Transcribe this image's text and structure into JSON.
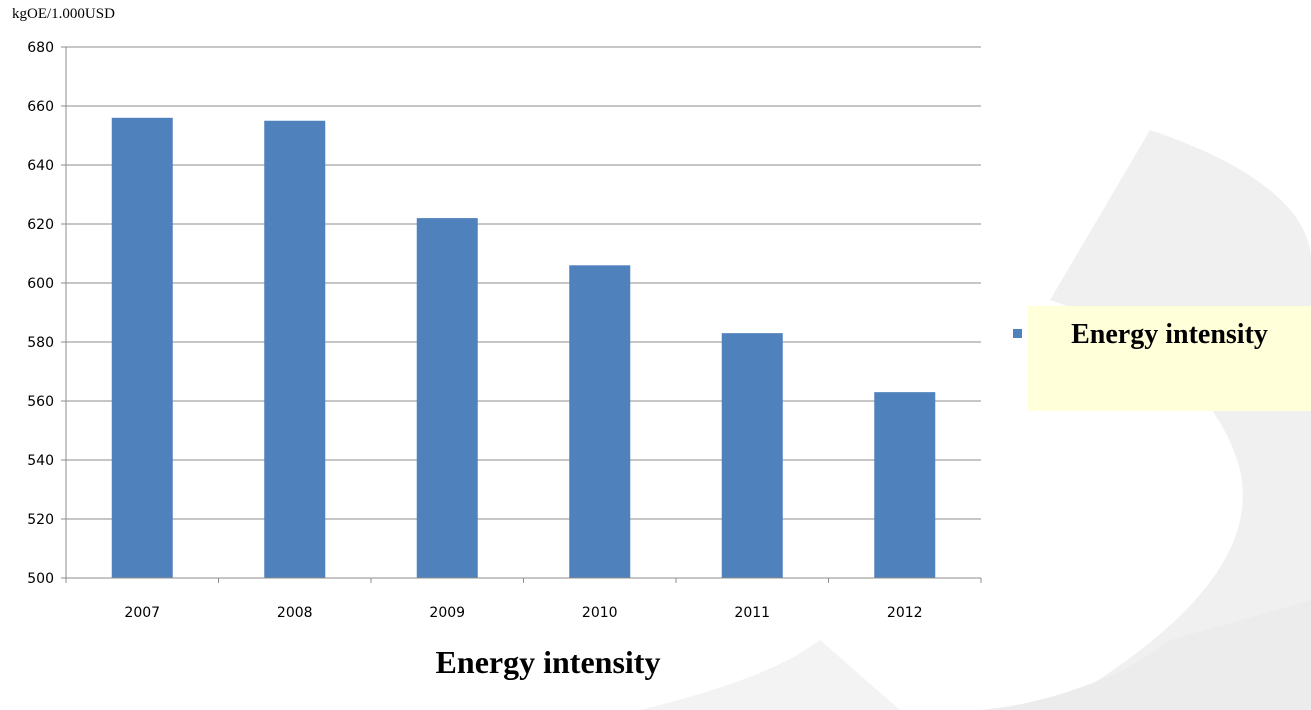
{
  "chart_data": {
    "type": "bar",
    "ylabel": "kgOE/1.000USD",
    "xlabel": "",
    "title": "Energy intensity",
    "categories": [
      "2007",
      "2008",
      "2009",
      "2010",
      "2011",
      "2012"
    ],
    "series": [
      {
        "name": "Energy intensity",
        "values": [
          656,
          655,
          622,
          606,
          583,
          563
        ],
        "color": "#4f81bd"
      }
    ],
    "ylim": [
      500,
      680
    ],
    "yticks": [
      500,
      520,
      540,
      560,
      580,
      600,
      620,
      640,
      660,
      680
    ],
    "grid": true,
    "legend_position": "right"
  },
  "colors": {
    "bar": "#4f81bd",
    "legend_bg": "#ffffd9",
    "gridline": "#8c8c8c",
    "background_swoosh": "#f0f0f0"
  }
}
